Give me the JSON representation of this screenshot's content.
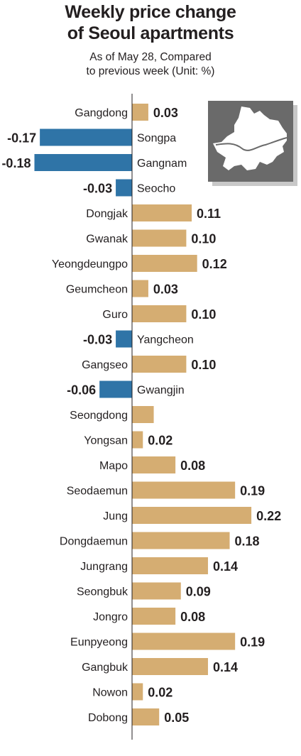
{
  "title_line1": "Weekly price change",
  "title_line2": "of Seoul apartments",
  "subtitle_line1": "As of May 28, Compared",
  "subtitle_line2": "to previous week (Unit: %)",
  "colors": {
    "positive": "#d5ad72",
    "negative": "#2f74a7",
    "axis": "#231f20",
    "map_box": "#6a6a6a",
    "map_shadow": "#c8c8c8",
    "map_land": "#ffffff"
  },
  "map_icon": "seoul-map-icon",
  "chart_data": {
    "type": "bar",
    "orientation": "horizontal",
    "categories": [
      "Gangdong",
      "Songpa",
      "Gangnam",
      "Seocho",
      "Dongjak",
      "Gwanak",
      "Yeongdeungpo",
      "Geumcheon",
      "Guro",
      "Yangcheon",
      "Gangseo",
      "Gwangjin",
      "Seongdong",
      "Yongsan",
      "Mapo",
      "Seodaemun",
      "Jung",
      "Dongdaemun",
      "Jungrang",
      "Seongbuk",
      "Jongro",
      "Eunpyeong",
      "Gangbuk",
      "Nowon",
      "Dobong"
    ],
    "values": [
      0.03,
      -0.17,
      -0.18,
      -0.03,
      0.11,
      0.1,
      0.12,
      0.03,
      0.1,
      -0.03,
      0.1,
      -0.06,
      0.04,
      0.02,
      0.08,
      0.19,
      0.22,
      0.18,
      0.14,
      0.09,
      0.08,
      0.19,
      0.14,
      0.02,
      0.05
    ],
    "labels": [
      "0.03",
      "-0.17",
      "-0.18",
      "-0.03",
      "0.11",
      "0.10",
      "0.12",
      "0.03",
      "0.10",
      "-0.03",
      "0.10",
      "-0.06",
      "",
      "0.02",
      "0.08",
      "0.19",
      "0.22",
      "0.18",
      "0.14",
      "0.09",
      "0.08",
      "0.19",
      "0.14",
      "0.02",
      "0.05"
    ],
    "unit": "%"
  }
}
